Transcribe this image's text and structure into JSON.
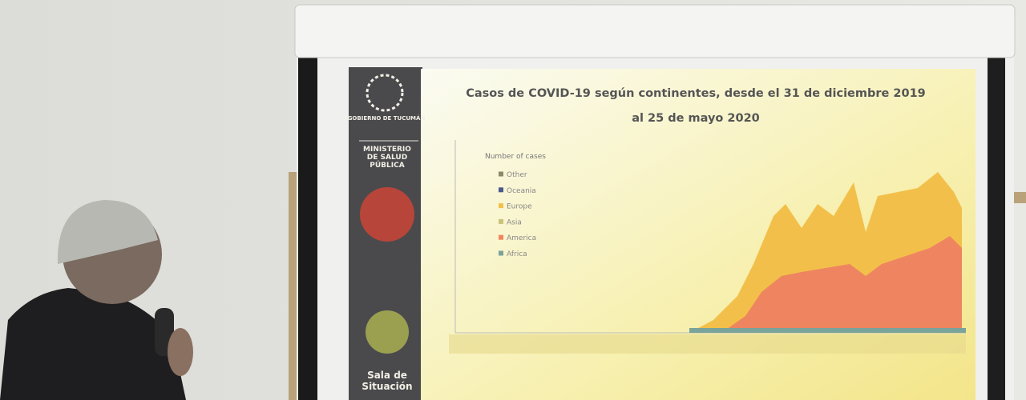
{
  "slide": {
    "sidebar": {
      "logo": "GOBIERNO DE TUCUMÁN",
      "ministry": "MINISTERIO DE SALUD PÚBLICA",
      "room": "Sala de Situación"
    },
    "title": [
      "Casos de COVID-19 según continentes, desde el 31 de diciembre 2019",
      "al 25 de mayo 2020"
    ],
    "legend": {
      "title": "Number of cases",
      "items": [
        {
          "name": "Other",
          "color": "#8a8a6a"
        },
        {
          "name": "Oceania",
          "color": "#4a5a8a"
        },
        {
          "name": "Europe",
          "color": "#f2c04a"
        },
        {
          "name": "Asia",
          "color": "#c9c27a"
        },
        {
          "name": "America",
          "color": "#ee8560"
        },
        {
          "name": "Africa",
          "color": "#7aa39a"
        }
      ]
    }
  }
}
